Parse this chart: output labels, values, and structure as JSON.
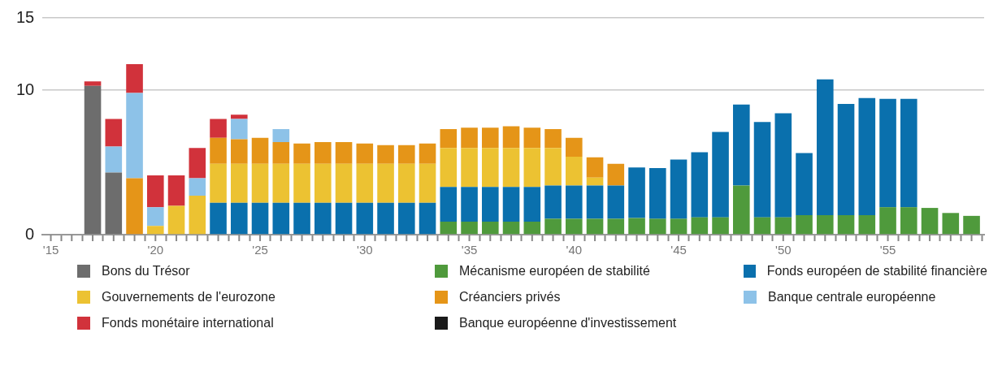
{
  "chart_data": {
    "type": "bar",
    "stacked": true,
    "x": [
      2017,
      2018,
      2019,
      2020,
      2021,
      2022,
      2023,
      2024,
      2025,
      2026,
      2027,
      2028,
      2029,
      2030,
      2031,
      2032,
      2033,
      2034,
      2035,
      2036,
      2037,
      2038,
      2039,
      2040,
      2041,
      2042,
      2043,
      2044,
      2045,
      2046,
      2047,
      2048,
      2049,
      2050,
      2051,
      2052,
      2053,
      2054,
      2055,
      2056,
      2057,
      2058,
      2059
    ],
    "xlim": [
      2014.6,
      2059.6
    ],
    "xticks": [
      {
        "value": 2015,
        "label": "'15"
      },
      {
        "value": 2016,
        "label": null
      },
      {
        "value": 2017,
        "label": null
      },
      {
        "value": 2018,
        "label": null
      },
      {
        "value": 2019,
        "label": null
      },
      {
        "value": 2020,
        "label": "'20"
      },
      {
        "value": 2021,
        "label": null
      },
      {
        "value": 2022,
        "label": null
      },
      {
        "value": 2023,
        "label": null
      },
      {
        "value": 2024,
        "label": null
      },
      {
        "value": 2025,
        "label": "'25"
      },
      {
        "value": 2026,
        "label": null
      },
      {
        "value": 2027,
        "label": null
      },
      {
        "value": 2028,
        "label": null
      },
      {
        "value": 2029,
        "label": null
      },
      {
        "value": 2030,
        "label": "'30"
      },
      {
        "value": 2031,
        "label": null
      },
      {
        "value": 2032,
        "label": null
      },
      {
        "value": 2033,
        "label": null
      },
      {
        "value": 2034,
        "label": null
      },
      {
        "value": 2035,
        "label": "'35"
      },
      {
        "value": 2036,
        "label": null
      },
      {
        "value": 2037,
        "label": null
      },
      {
        "value": 2038,
        "label": null
      },
      {
        "value": 2039,
        "label": null
      },
      {
        "value": 2040,
        "label": "'40"
      },
      {
        "value": 2041,
        "label": null
      },
      {
        "value": 2042,
        "label": null
      },
      {
        "value": 2043,
        "label": null
      },
      {
        "value": 2044,
        "label": null
      },
      {
        "value": 2045,
        "label": "'45"
      },
      {
        "value": 2046,
        "label": null
      },
      {
        "value": 2047,
        "label": null
      },
      {
        "value": 2048,
        "label": null
      },
      {
        "value": 2049,
        "label": null
      },
      {
        "value": 2050,
        "label": "'50"
      },
      {
        "value": 2051,
        "label": null
      },
      {
        "value": 2052,
        "label": null
      },
      {
        "value": 2053,
        "label": null
      },
      {
        "value": 2054,
        "label": null
      },
      {
        "value": 2055,
        "label": "'55"
      },
      {
        "value": 2056,
        "label": null
      },
      {
        "value": 2057,
        "label": null
      },
      {
        "value": 2058,
        "label": null
      },
      {
        "value": 2059,
        "label": null
      }
    ],
    "ylim": [
      0,
      15
    ],
    "yticks": [
      0,
      10,
      15
    ],
    "grid": "y",
    "legend": "bottom",
    "series": [
      {
        "name": "Bons du Trésor",
        "color": "#6d6d6d",
        "values": [
          10.3,
          4.3,
          null,
          null,
          null,
          null,
          null,
          null,
          null,
          null,
          null,
          null,
          null,
          null,
          null,
          null,
          null,
          null,
          null,
          null,
          null,
          null,
          null,
          null,
          null,
          null,
          null,
          null,
          null,
          null,
          null,
          null,
          null,
          null,
          null,
          null,
          null,
          null,
          null,
          null,
          null,
          null,
          null
        ]
      },
      {
        "name": "Mécanisme européen de stabilité",
        "color": "#4f9a3c",
        "values": [
          null,
          null,
          null,
          null,
          null,
          null,
          null,
          null,
          null,
          null,
          null,
          null,
          null,
          null,
          null,
          null,
          null,
          0.9,
          0.9,
          0.9,
          0.9,
          0.9,
          1.1,
          1.1,
          1.1,
          1.1,
          1.15,
          1.1,
          1.1,
          1.2,
          1.2,
          3.4,
          1.2,
          1.2,
          1.35,
          1.35,
          1.35,
          1.35,
          1.9,
          1.9,
          1.85,
          1.5,
          1.3
        ]
      },
      {
        "name": "Fonds européen de stabilité financière",
        "color": "#0a70ad",
        "values": [
          null,
          null,
          null,
          null,
          null,
          null,
          2.2,
          2.2,
          2.2,
          2.2,
          2.2,
          2.2,
          2.2,
          2.2,
          2.2,
          2.2,
          2.2,
          2.4,
          2.4,
          2.4,
          2.4,
          2.4,
          2.3,
          2.3,
          2.3,
          2.3,
          3.5,
          3.5,
          4.1,
          4.5,
          5.9,
          5.6,
          6.6,
          7.2,
          4.3,
          9.4,
          7.7,
          8.1,
          7.5,
          7.5,
          null,
          null,
          null
        ]
      },
      {
        "name": "Gouvernements de l'eurozone",
        "color": "#ecc232",
        "values": [
          null,
          null,
          null,
          0.6,
          2.0,
          2.7,
          2.7,
          2.7,
          2.7,
          2.7,
          2.7,
          2.7,
          2.7,
          2.7,
          2.7,
          2.7,
          2.7,
          2.7,
          2.7,
          2.7,
          2.7,
          2.7,
          2.6,
          2.0,
          0.55,
          null,
          null,
          null,
          null,
          null,
          null,
          null,
          null,
          null,
          null,
          null,
          null,
          null,
          null,
          null,
          null,
          null,
          null
        ]
      },
      {
        "name": "Créanciers privés",
        "color": "#e59518",
        "values": [
          null,
          null,
          3.9,
          null,
          null,
          null,
          1.8,
          1.7,
          1.8,
          1.5,
          1.4,
          1.5,
          1.5,
          1.4,
          1.3,
          1.3,
          1.4,
          1.3,
          1.4,
          1.4,
          1.5,
          1.4,
          1.3,
          1.3,
          1.4,
          1.5,
          null,
          null,
          null,
          null,
          null,
          null,
          null,
          null,
          null,
          null,
          null,
          null,
          null,
          null,
          null,
          null,
          null
        ]
      },
      {
        "name": "Banque centrale européenne",
        "color": "#8dc2e8",
        "values": [
          null,
          1.8,
          5.9,
          1.3,
          null,
          1.2,
          null,
          1.4,
          null,
          0.9,
          null,
          null,
          null,
          null,
          null,
          null,
          null,
          null,
          null,
          null,
          null,
          null,
          null,
          null,
          null,
          null,
          null,
          null,
          null,
          null,
          null,
          null,
          null,
          null,
          null,
          null,
          null,
          null,
          null,
          null,
          null,
          null,
          null
        ]
      },
      {
        "name": "Fonds monétaire international",
        "color": "#d1323b",
        "values": [
          0.3,
          1.9,
          2.0,
          2.2,
          2.1,
          2.1,
          1.3,
          0.3,
          null,
          null,
          null,
          null,
          null,
          null,
          null,
          null,
          null,
          null,
          null,
          null,
          null,
          null,
          null,
          null,
          null,
          null,
          null,
          null,
          null,
          null,
          null,
          null,
          null,
          null,
          null,
          null,
          null,
          null,
          null,
          null,
          null,
          null,
          null
        ]
      },
      {
        "name": "Banque européenne d'investissement",
        "color": "#1a1a1a",
        "values": [
          null,
          null,
          null,
          null,
          null,
          null,
          null,
          null,
          null,
          null,
          null,
          null,
          null,
          null,
          null,
          null,
          null,
          null,
          null,
          null,
          null,
          null,
          null,
          null,
          null,
          null,
          null,
          null,
          null,
          null,
          null,
          null,
          null,
          null,
          null,
          null,
          null,
          null,
          null,
          null,
          null,
          null,
          null
        ]
      }
    ]
  }
}
